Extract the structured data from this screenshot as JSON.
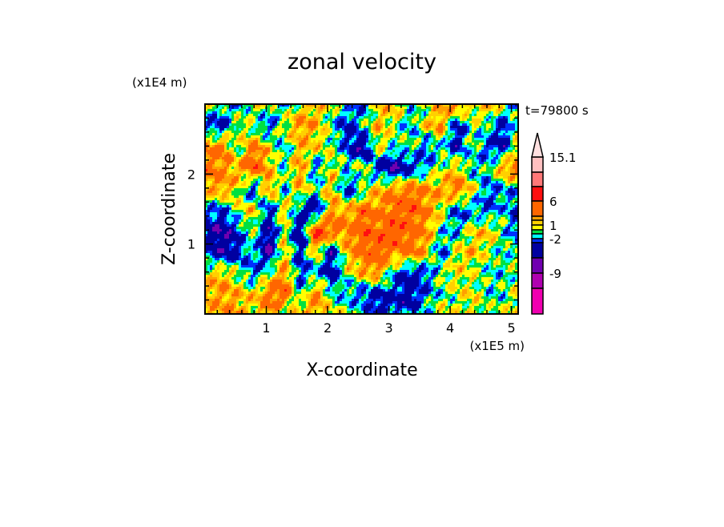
{
  "chart_data": {
    "type": "heatmap",
    "title": "zonal velocity",
    "xlabel": "X-coordinate",
    "ylabel": "Z-coordinate",
    "x_unit": "(x1E5 m)",
    "y_unit": "(x1E4 m)",
    "time_label": "t=79800 s",
    "xlim": [
      0,
      5.11
    ],
    "ylim": [
      0,
      3.0
    ],
    "x_ticks": [
      "1",
      "2",
      "3",
      "4",
      "5"
    ],
    "x_tick_values": [
      1,
      2,
      3,
      4,
      5
    ],
    "y_ticks": [
      "1",
      "2"
    ],
    "y_tick_values": [
      1,
      2
    ],
    "minor_tick_step": 0.2,
    "colorbar": {
      "labels": [
        "15.1",
        "6",
        "1",
        "-2",
        "-9"
      ],
      "label_values": [
        15.1,
        6,
        1,
        -2,
        -9
      ],
      "boundaries": [
        15.1,
        12,
        9,
        6,
        3,
        2,
        1,
        0,
        -1,
        -2,
        -3,
        -6,
        -9,
        -12,
        -15
      ],
      "colors": [
        "#ffc0c0",
        "#ff7878",
        "#ff1010",
        "#ff6600",
        "#ffa000",
        "#ffd000",
        "#ffff00",
        "#00e040",
        "#00ffff",
        "#0030ff",
        "#0000a0",
        "#7000b0",
        "#b000b0",
        "#f000b0"
      ],
      "extend_color": "#ffe0e0"
    },
    "z_rows_top_to_bottom": [
      [
        0,
        -1,
        -2,
        1,
        0,
        -2,
        1,
        2,
        0,
        -1,
        -3,
        1,
        2,
        -1,
        0,
        2,
        3,
        1,
        2,
        0,
        -3
      ],
      [
        -3,
        -4,
        1,
        -1,
        -3,
        1,
        3,
        2,
        -1,
        -4,
        -1,
        2,
        0,
        -2,
        1,
        3,
        -4,
        0,
        -1,
        -4,
        1
      ],
      [
        3,
        4,
        -1,
        4,
        1,
        -2,
        2,
        1,
        0,
        -3,
        -6,
        1,
        -1,
        0,
        -3,
        -1,
        -4,
        0,
        -3,
        -4,
        2
      ],
      [
        4,
        3,
        2,
        5,
        2,
        -1,
        3,
        -3,
        1,
        -1,
        1,
        -4,
        -6,
        -4,
        -2,
        0,
        2,
        -2,
        -1,
        3,
        4
      ],
      [
        2,
        3,
        1,
        -4,
        3,
        -2,
        2,
        -1,
        2,
        -4,
        -1,
        2,
        3,
        4,
        3,
        2,
        4,
        1,
        -3,
        -2,
        -1
      ],
      [
        -2,
        -3,
        0,
        2,
        -4,
        2,
        -3,
        -5,
        3,
        2,
        4,
        3,
        4,
        5,
        3,
        1,
        -3,
        -2,
        -3,
        -1,
        -4
      ],
      [
        -4,
        -6,
        -3,
        0,
        -5,
        1,
        -6,
        7,
        4,
        3,
        5,
        4,
        6,
        4,
        3,
        -1,
        -2,
        1,
        2,
        -1,
        -3
      ],
      [
        -3,
        -5,
        -4,
        -1,
        -6,
        2,
        -4,
        2,
        -5,
        2,
        4,
        5,
        3,
        4,
        2,
        -3,
        1,
        2,
        0,
        -1,
        0
      ],
      [
        1,
        2,
        0,
        -3,
        0,
        3,
        -3,
        -2,
        -4,
        0,
        2,
        3,
        -2,
        -4,
        -3,
        0,
        1,
        0,
        -1,
        -1,
        0
      ],
      [
        2,
        3,
        2,
        1,
        4,
        5,
        -2,
        4,
        -1,
        -2,
        -3,
        -4,
        -3,
        -5,
        -2,
        -1,
        0,
        1,
        -1,
        -1,
        1
      ],
      [
        2,
        2,
        3,
        1,
        3,
        -2,
        3,
        2,
        1,
        0,
        -1,
        -4,
        -3,
        -2,
        -1,
        1,
        0,
        1,
        0,
        0,
        1
      ]
    ]
  }
}
